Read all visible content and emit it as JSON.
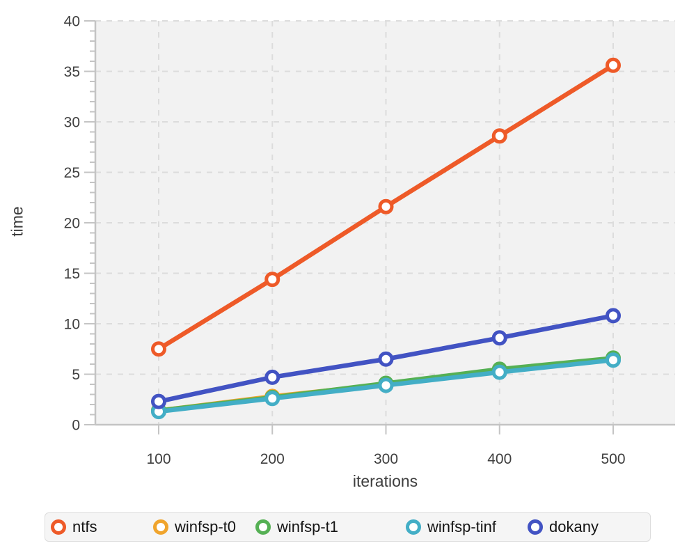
{
  "chart_data": {
    "type": "line",
    "x": [
      100,
      200,
      300,
      400,
      500
    ],
    "series": [
      {
        "name": "ntfs",
        "color": "#ee5a28",
        "values": [
          7.5,
          14.4,
          21.6,
          28.6,
          35.6
        ]
      },
      {
        "name": "winfsp-t0",
        "color": "#f0a42c",
        "values": [
          1.4,
          2.8,
          4.0,
          5.3,
          6.5
        ]
      },
      {
        "name": "winfsp-t1",
        "color": "#55b054",
        "values": [
          1.4,
          2.7,
          4.1,
          5.5,
          6.6
        ]
      },
      {
        "name": "winfsp-tinf",
        "color": "#43aec6",
        "values": [
          1.3,
          2.6,
          3.9,
          5.2,
          6.4
        ]
      },
      {
        "name": "dokany",
        "color": "#4253c3",
        "values": [
          2.3,
          4.7,
          6.5,
          8.6,
          10.8
        ]
      }
    ],
    "title": "",
    "xlabel": "iterations",
    "ylabel": "time",
    "xticks": [
      100,
      200,
      300,
      400,
      500
    ],
    "yticks": [
      0,
      5,
      10,
      15,
      20,
      25,
      30,
      35,
      40
    ],
    "ylim": [
      0,
      40
    ],
    "y_minor_step": 1,
    "grid": true,
    "grid_style": "dashed",
    "legend_position": "bottom",
    "z_order": [
      "winfsp-t0",
      "winfsp-t1",
      "winfsp-tinf",
      "dokany",
      "ntfs"
    ]
  },
  "colors": {
    "plot_bg": "#f2f2f2",
    "gridline": "#dcdcdc",
    "axis": "#c4c4c4",
    "tick_text": "#3f3f3f",
    "legend_bg": "#f5f5f5",
    "legend_border": "#dcdcdc"
  }
}
